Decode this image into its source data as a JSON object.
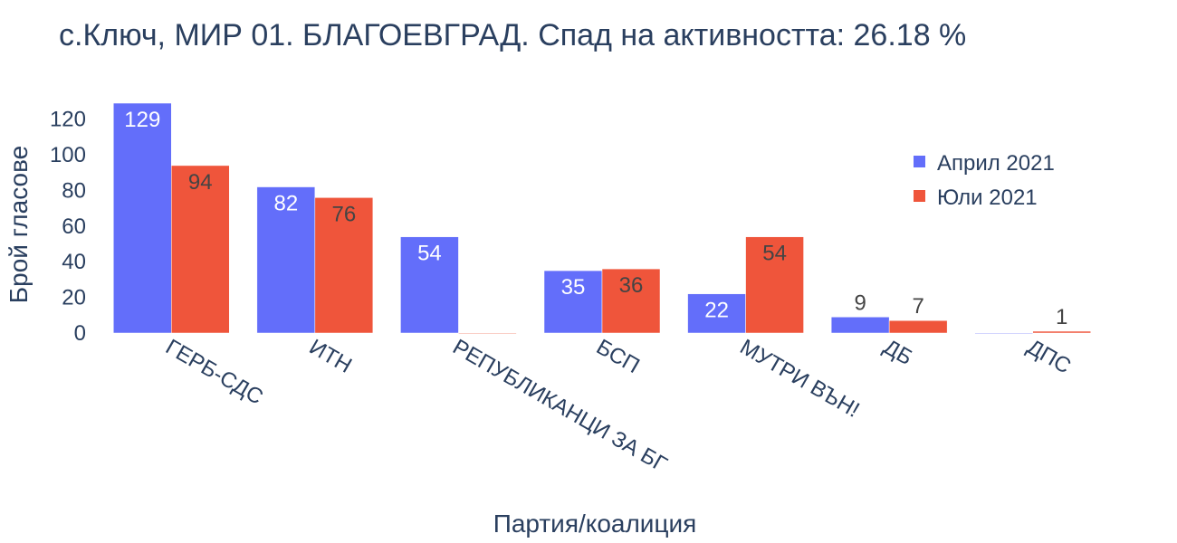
{
  "chart_data": {
    "type": "bar",
    "title": "с.Ключ, МИР 01. БЛАГОЕВГРАД. Спад на активността: 26.18 %",
    "xlabel": "Партия/коалиция",
    "ylabel": "Брой гласове",
    "ylim": [
      0,
      129
    ],
    "yticks": [
      "0",
      "20",
      "40",
      "60",
      "80",
      "100",
      "120"
    ],
    "categories": [
      "ГЕРБ-СДС",
      "ИТН",
      "РЕПУБЛИКАНЦИ ЗА БГ",
      "БСП",
      "МУТРИ ВЪН!",
      "ДБ",
      "ДПС"
    ],
    "series": [
      {
        "name": "Април 2021",
        "color": "#636efa",
        "values": [
          129,
          82,
          54,
          35,
          22,
          9,
          0
        ]
      },
      {
        "name": "Юли 2021",
        "color": "#ef553b",
        "values": [
          94,
          76,
          0,
          36,
          54,
          7,
          1
        ]
      }
    ],
    "legend": "top-right",
    "grid": false
  }
}
